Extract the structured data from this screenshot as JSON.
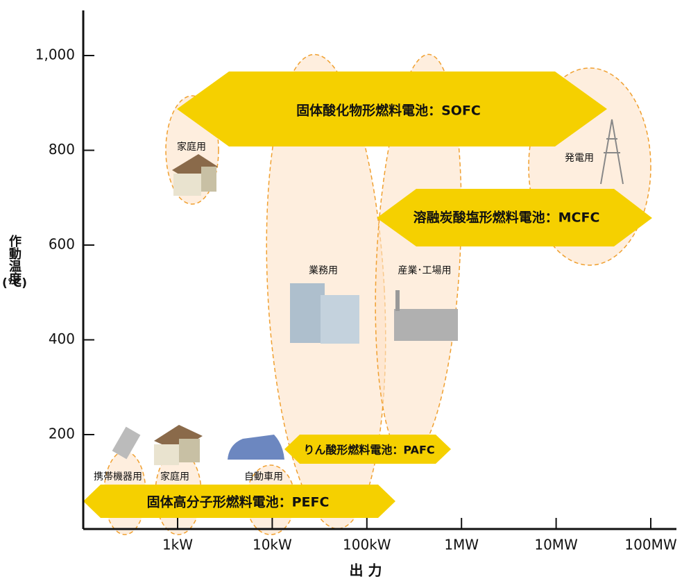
{
  "y_axis": {
    "title": "作動温度",
    "unit": "(℃)",
    "ticks": [
      "1,000",
      "800",
      "600",
      "400",
      "200"
    ]
  },
  "x_axis": {
    "title": "出 力",
    "ticks": [
      "1kW",
      "10kW",
      "100kW",
      "1MW",
      "10MW",
      "100MW"
    ]
  },
  "arrows": [
    {
      "label": "固体酸化物形燃料電池：SOFC"
    },
    {
      "label": "溶融炭酸塩形燃料電池：MCFC"
    },
    {
      "label": "りん酸形燃料電池：PAFC"
    },
    {
      "label": "固体高分子形燃料電池：PEFC"
    }
  ],
  "applications": [
    {
      "label": "家庭用"
    },
    {
      "label": "発電用"
    },
    {
      "label": "業務用"
    },
    {
      "label": "産業･工場用"
    },
    {
      "label": "携帯機器用"
    },
    {
      "label": "家庭用"
    },
    {
      "label": "自動車用"
    }
  ]
}
